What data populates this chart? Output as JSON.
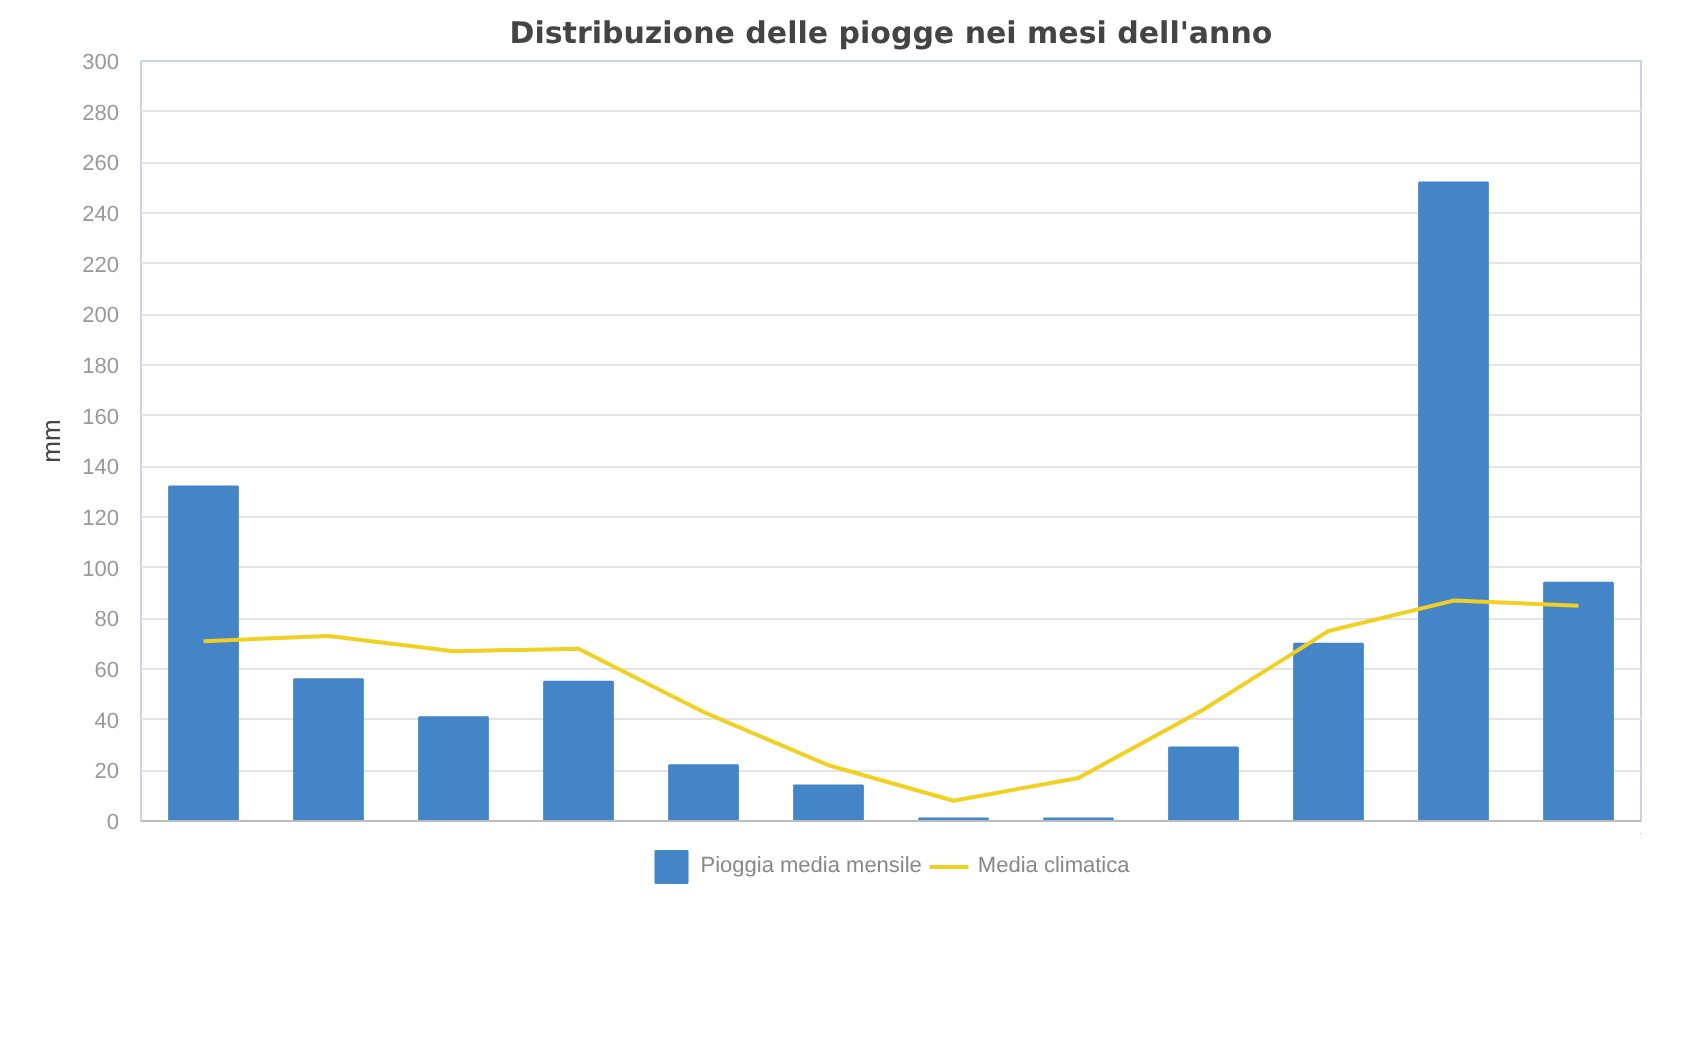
{
  "chart_data": {
    "type": "bar",
    "title": "Distribuzione delle piogge nei mesi dell'anno",
    "ylabel": "mm",
    "categories": [
      null,
      null,
      null,
      null,
      null,
      null,
      null,
      null,
      null,
      null,
      null,
      null
    ],
    "series": [
      {
        "name": "Pioggia media mensile",
        "color": "#4485c8",
        "values": [
          132,
          56,
          41,
          55,
          22,
          14,
          1,
          1,
          29,
          70,
          252,
          94
        ]
      },
      {
        "name": "Media climatica",
        "color": "#f0d020",
        "type": "line",
        "values": [
          71,
          73,
          67,
          68,
          43,
          22,
          8,
          17,
          44,
          75,
          87,
          85
        ]
      }
    ],
    "ylim": [
      0,
      300
    ],
    "yticks": [
      0,
      20,
      40,
      60,
      80,
      100,
      120,
      140,
      160,
      180,
      200,
      220,
      240,
      260,
      280,
      300
    ],
    "grid": "y",
    "legend": "bottom",
    "tick_labels": "y"
  }
}
